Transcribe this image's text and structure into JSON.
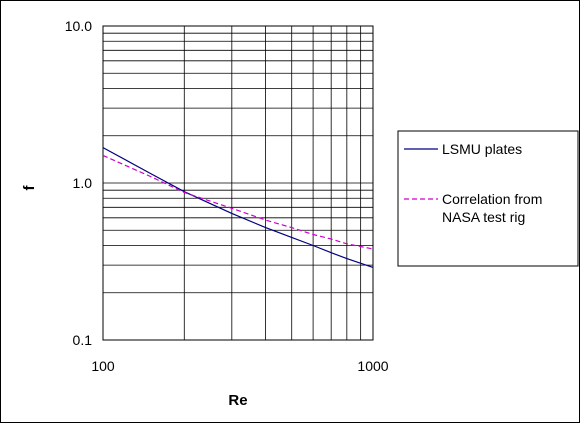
{
  "chart_data": {
    "type": "line",
    "xlabel": "Re",
    "ylabel": "f",
    "xscale": "log",
    "yscale": "log",
    "xlim": [
      100,
      1000
    ],
    "ylim": [
      0.1,
      10.0
    ],
    "x_tick_labels": [
      "100",
      "1000"
    ],
    "y_tick_labels": [
      "0.1",
      "1.0",
      "10.0"
    ],
    "grid": true,
    "legend_position": "right",
    "series": [
      {
        "name": "LSMU plates",
        "color": "#000080",
        "dash": "solid",
        "x": [
          100,
          150,
          200,
          300,
          400,
          500,
          600,
          700,
          800,
          1000
        ],
        "y": [
          1.68,
          1.15,
          0.88,
          0.64,
          0.52,
          0.45,
          0.4,
          0.36,
          0.33,
          0.29
        ]
      },
      {
        "name": "Correlation from NASA test rig",
        "legend_lines": [
          "Correlation from",
          "NASA test rig"
        ],
        "color": "#cc00cc",
        "dash": "dashed",
        "x": [
          100,
          150,
          200,
          300,
          400,
          500,
          600,
          700,
          800,
          1000
        ],
        "y": [
          1.5,
          1.1,
          0.87,
          0.69,
          0.58,
          0.52,
          0.47,
          0.44,
          0.41,
          0.38
        ]
      }
    ]
  }
}
